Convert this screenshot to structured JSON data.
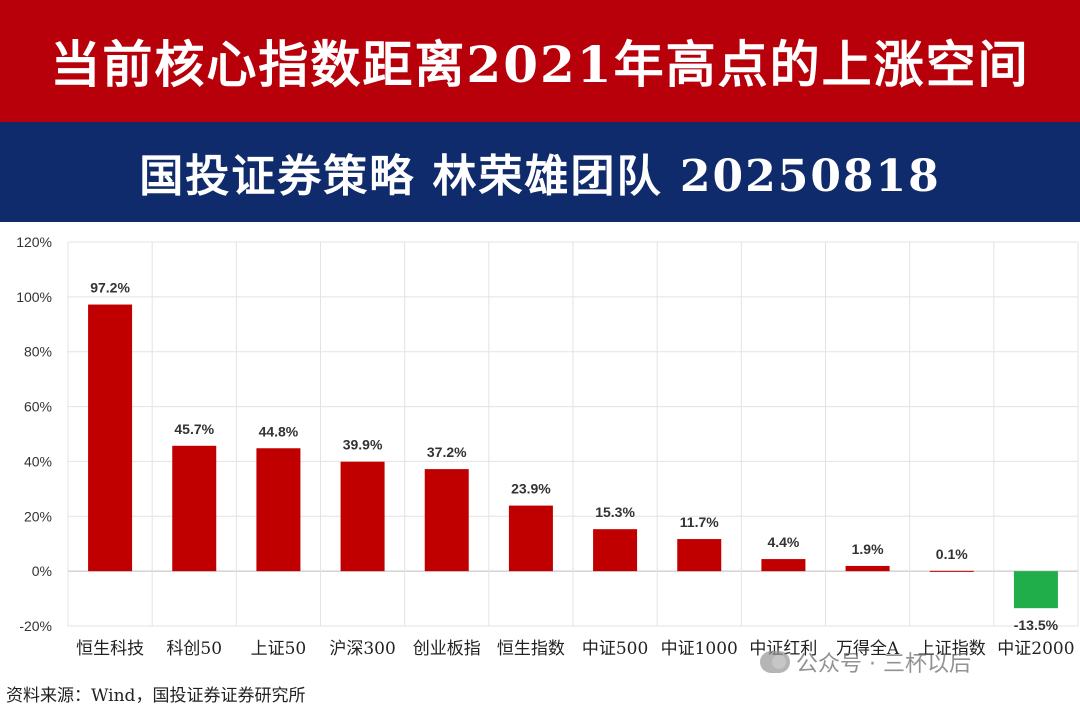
{
  "header": {
    "title": "当前核心指数距离2021年高点的上涨空间",
    "subtitle": "国投证券策略  林荣雄团队  20250818"
  },
  "source": "资料来源：Wind，国投证券证券研究所",
  "watermark": "公众号 · 三杯以后",
  "colors": {
    "positive": "#c00000",
    "negative": "#1fae4a",
    "title_bg": "#b8000b",
    "subtitle_bg": "#0f2b6b"
  },
  "chart_data": {
    "type": "bar",
    "categories": [
      "恒生科技",
      "科创50",
      "上证50",
      "沪深300",
      "创业板指",
      "恒生指数",
      "中证500",
      "中证1000",
      "中证红利",
      "万得全A",
      "上证指数",
      "中证2000"
    ],
    "values": [
      97.2,
      45.7,
      44.8,
      39.9,
      37.2,
      23.9,
      15.3,
      11.7,
      4.4,
      1.9,
      0.1,
      -13.5
    ],
    "data_labels": [
      "97.2%",
      "45.7%",
      "44.8%",
      "39.9%",
      "37.2%",
      "23.9%",
      "15.3%",
      "11.7%",
      "4.4%",
      "1.9%",
      "0.1%",
      "-13.5%"
    ],
    "ylim": [
      -20,
      120
    ],
    "yticks": [
      -20,
      0,
      20,
      40,
      60,
      80,
      100,
      120
    ],
    "ytick_labels": [
      "-20%",
      "0%",
      "20%",
      "40%",
      "60%",
      "80%",
      "100%",
      "120%"
    ],
    "grid": true,
    "legend": "none"
  }
}
